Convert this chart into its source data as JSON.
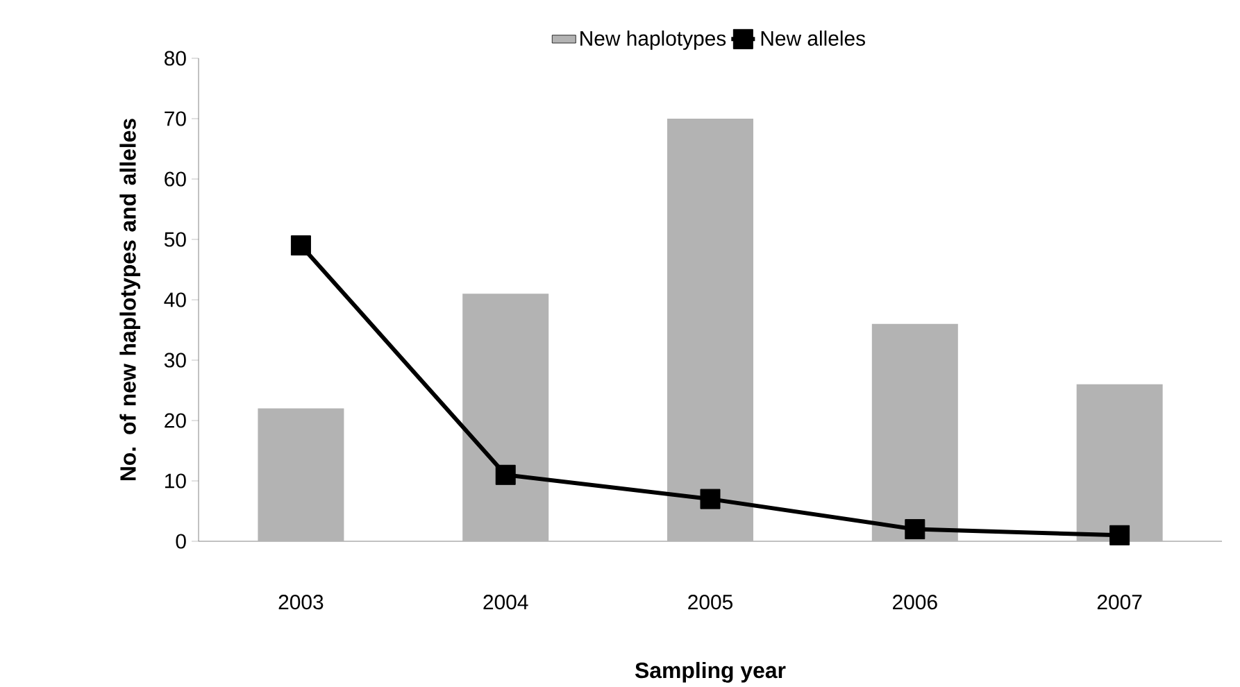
{
  "chart_data": {
    "type": "bar",
    "xlabel": "Sampling year",
    "ylabel": "No. of new haplotypes and alleles",
    "categories": [
      "2003",
      "2004",
      "2005",
      "2006",
      "2007"
    ],
    "series": [
      {
        "name": "New haplotypes",
        "color": "#b3b3b3",
        "values": [
          22,
          41,
          70,
          36,
          26
        ]
      },
      {
        "name": "New alleles",
        "type": "line",
        "color": "#000000",
        "marker": "square",
        "values": [
          49,
          11,
          7,
          2,
          1
        ]
      }
    ],
    "ylim": [
      0,
      80
    ],
    "yticks": [
      0,
      10,
      20,
      30,
      40,
      50,
      60,
      70,
      80
    ],
    "legend": "top",
    "grid": false
  }
}
